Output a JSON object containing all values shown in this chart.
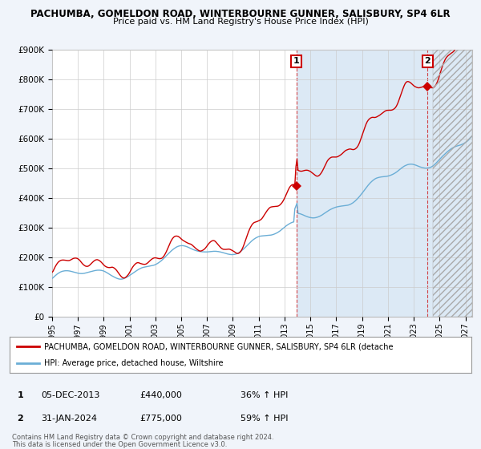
{
  "title1": "PACHUMBA, GOMELDON ROAD, WINTERBOURNE GUNNER, SALISBURY, SP4 6LR",
  "title2": "Price paid vs. HM Land Registry's House Price Index (HPI)",
  "ylabel_ticks": [
    "£0",
    "£100K",
    "£200K",
    "£300K",
    "£400K",
    "£500K",
    "£600K",
    "£700K",
    "£800K",
    "£900K"
  ],
  "ylim": [
    0,
    900000
  ],
  "xlim_start": 1995.0,
  "xlim_end": 2027.5,
  "hpi_color": "#6baed6",
  "price_color": "#cc0000",
  "marker1_date": 2013.92,
  "marker1_price": 440000,
  "marker2_date": 2024.08,
  "marker2_price": 775000,
  "legend_price_label": "PACHUMBA, GOMELDON ROAD, WINTERBOURNE GUNNER, SALISBURY, SP4 6LR (detache",
  "legend_hpi_label": "HPI: Average price, detached house, Wiltshire",
  "table_row1": [
    "1",
    "05-DEC-2013",
    "£440,000",
    "36% ↑ HPI"
  ],
  "table_row2": [
    "2",
    "31-JAN-2024",
    "£775,000",
    "59% ↑ HPI"
  ],
  "footnote1": "Contains HM Land Registry data © Crown copyright and database right 2024.",
  "footnote2": "This data is licensed under the Open Government Licence v3.0.",
  "bg_color": "#f0f4fa",
  "plot_bg": "#ffffff",
  "shaded_bg": "#dce9f5",
  "grid_color": "#cccccc",
  "hatch_start": 2024.5,
  "shade_start": 2013.92
}
